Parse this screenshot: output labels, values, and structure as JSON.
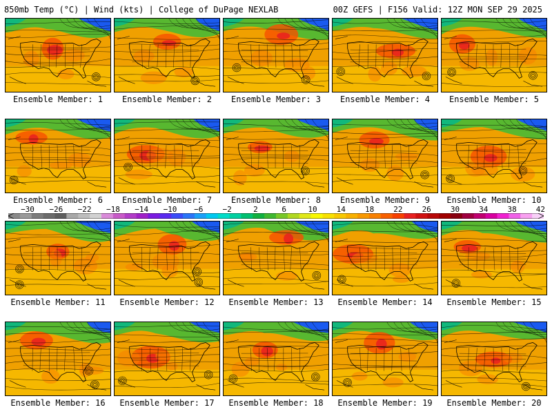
{
  "header": {
    "left": "850mb Temp (°C) | Wind (kts) | College of DuPage NEXLAB",
    "right": "00Z GEFS | F156 Valid: 12Z MON SEP 29 2025"
  },
  "colorbar": {
    "labels": [
      "−30",
      "−26",
      "−22",
      "−18",
      "−14",
      "−10",
      "−6",
      "−2",
      "2",
      "6",
      "10",
      "14",
      "18",
      "22",
      "26",
      "30",
      "34",
      "38",
      "42"
    ],
    "colors": [
      "#8a8a8a",
      "#9a9a9a",
      "#7c7c7c",
      "#6c6c6c",
      "#5e5e5e",
      "#a8a8a8",
      "#bdbdbd",
      "#d2d2d2",
      "#d98ad9",
      "#c85ac8",
      "#b23cc8",
      "#a020c8",
      "#7a1ae0",
      "#5a2af0",
      "#3a4cf8",
      "#2a74f8",
      "#1aa0f8",
      "#00c8f0",
      "#00dcc8",
      "#00d0a0",
      "#00c070",
      "#10b040",
      "#40b830",
      "#78c828",
      "#b0d820",
      "#e0e818",
      "#f8f800",
      "#f8e000",
      "#f8c800",
      "#f8b000",
      "#f89800",
      "#f88000",
      "#f86000",
      "#f84000",
      "#e82020",
      "#d01010",
      "#b80808",
      "#a00000",
      "#880010",
      "#a00040",
      "#c00070",
      "#d800a0",
      "#f020d0",
      "#f060e8",
      "#f8a0f0",
      "#f8d0f8"
    ]
  },
  "panels": [
    {
      "label": "Ensemble Member: 1"
    },
    {
      "label": "Ensemble Member: 2"
    },
    {
      "label": "Ensemble Member: 3"
    },
    {
      "label": "Ensemble Member: 4"
    },
    {
      "label": "Ensemble Member: 5"
    },
    {
      "label": "Ensemble Member: 6"
    },
    {
      "label": "Ensemble Member: 7"
    },
    {
      "label": "Ensemble Member: 8"
    },
    {
      "label": "Ensemble Member: 9"
    },
    {
      "label": "Ensemble Member: 10"
    },
    {
      "label": "Ensemble Member: 11"
    },
    {
      "label": "Ensemble Member: 12"
    },
    {
      "label": "Ensemble Member: 13"
    },
    {
      "label": "Ensemble Member: 14"
    },
    {
      "label": "Ensemble Member: 15"
    },
    {
      "label": "Ensemble Member: 16"
    },
    {
      "label": "Ensemble Member: 17"
    },
    {
      "label": "Ensemble Member: 18"
    },
    {
      "label": "Ensemble Member: 19"
    },
    {
      "label": "Ensemble Member: 20"
    }
  ]
}
